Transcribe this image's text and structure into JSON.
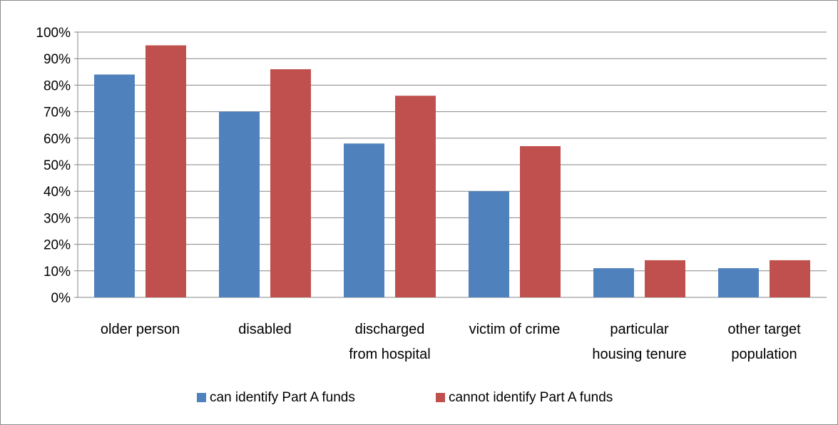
{
  "chart_data": {
    "type": "bar",
    "title": "",
    "xlabel": "",
    "ylabel": "",
    "ylim": [
      0,
      100
    ],
    "y_ticks": [
      "0%",
      "10%",
      "20%",
      "30%",
      "40%",
      "50%",
      "60%",
      "70%",
      "80%",
      "90%",
      "100%"
    ],
    "y_unit": "%",
    "grid": true,
    "legend_position": "bottom",
    "categories": [
      [
        "older person"
      ],
      [
        "disabled"
      ],
      [
        "discharged",
        "from hospital"
      ],
      [
        "victim of crime"
      ],
      [
        "particular",
        "housing tenure"
      ],
      [
        "other target",
        "population"
      ]
    ],
    "series": [
      {
        "name": "can identify Part A funds",
        "color": "#4f81bd",
        "values": [
          84,
          70,
          58,
          40,
          11,
          11
        ]
      },
      {
        "name": "cannot identify Part A funds",
        "color": "#c0504d",
        "values": [
          95,
          86,
          76,
          57,
          14,
          14
        ]
      }
    ]
  }
}
